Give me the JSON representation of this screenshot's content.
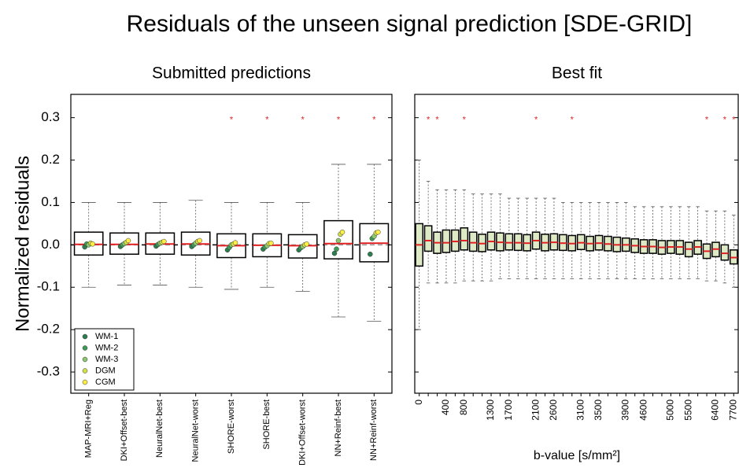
{
  "title": "Residuals of the unseen signal prediction [SDE-GRID]",
  "chart_data": [
    {
      "type": "box",
      "title": "Submitted predictions",
      "ylabel": "Normalized residuals",
      "categories": [
        "MAP-MRI+Reg",
        "DKI+Offset-best",
        "NeuralNet-best",
        "NeuralNet-worst",
        "SHORE-worst",
        "SHORE-best",
        "DKI+Offset-worst",
        "NN+Reinf-best",
        "NN+Reinf-worst"
      ],
      "boxes": {
        "whisker_low": [
          -0.1,
          -0.095,
          -0.095,
          -0.1,
          -0.105,
          -0.1,
          -0.11,
          -0.17,
          -0.18
        ],
        "q1": [
          -0.024,
          -0.022,
          -0.022,
          -0.024,
          -0.03,
          -0.028,
          -0.031,
          -0.033,
          -0.04
        ],
        "median": [
          0.001,
          0.001,
          0.002,
          0.002,
          -0.002,
          -0.001,
          -0.002,
          0.003,
          0.004
        ],
        "q3": [
          0.03,
          0.028,
          0.028,
          0.03,
          0.026,
          0.026,
          0.024,
          0.057,
          0.05
        ],
        "whisker_high": [
          0.1,
          0.1,
          0.1,
          0.105,
          0.1,
          0.1,
          0.1,
          0.19,
          0.19
        ]
      },
      "box_color": "#000000",
      "box_fill": "#ffffff",
      "median_color": "#e02020",
      "series": [
        {
          "name": "WM-1",
          "color": "#2e7d4f",
          "values": [
            -0.005,
            -0.004,
            -0.003,
            -0.004,
            -0.012,
            -0.01,
            -0.012,
            -0.02,
            -0.022
          ]
        },
        {
          "name": "WM-2",
          "color": "#3f9a5a",
          "values": [
            0.002,
            0.0,
            0.001,
            0.0,
            -0.006,
            -0.005,
            -0.007,
            -0.01,
            0.015
          ]
        },
        {
          "name": "WM-3",
          "color": "#8cc870",
          "values": [
            0.0,
            0.003,
            0.004,
            0.004,
            0.0,
            -0.002,
            -0.004,
            0.01,
            0.02
          ]
        },
        {
          "name": "DGM",
          "color": "#d4e04a",
          "values": [
            0.004,
            0.006,
            0.006,
            0.008,
            0.002,
            0.003,
            0.0,
            0.025,
            0.028
          ]
        },
        {
          "name": "CGM",
          "color": "#ffee44",
          "values": [
            0.002,
            0.01,
            0.008,
            0.01,
            0.005,
            0.004,
            0.002,
            0.03,
            0.03
          ]
        }
      ],
      "legend": "lower left",
      "reference_line": 0,
      "flag_text": "*",
      "flag_y": 0.3,
      "flag_color": "#e02020",
      "flagged": [
        false,
        false,
        false,
        false,
        true,
        true,
        true,
        true,
        true
      ],
      "ylim": [
        -0.35,
        0.355
      ],
      "yticks": [
        -0.3,
        -0.2,
        -0.1,
        {
          "value": 0,
          "label": "0.0"
        },
        0.1,
        0.2,
        0.3
      ],
      "show_ytick_labels": true
    },
    {
      "type": "box",
      "title": "Best fit",
      "xlabel": "b-value [s/mm²]",
      "categories": [
        "0",
        null,
        null,
        "400",
        null,
        "800",
        null,
        null,
        "1300",
        null,
        "1700",
        null,
        null,
        "2100",
        null,
        "2600",
        null,
        null,
        "3100",
        null,
        "3500",
        null,
        null,
        "3900",
        null,
        "4600",
        null,
        null,
        "5000",
        null,
        "5500",
        null,
        null,
        "6400",
        null,
        "7700"
      ],
      "boxes": {
        "whisker_low": [
          -0.2,
          -0.09,
          -0.09,
          -0.09,
          -0.09,
          -0.085,
          -0.085,
          -0.085,
          -0.085,
          -0.08,
          -0.08,
          -0.08,
          -0.08,
          -0.08,
          -0.08,
          -0.08,
          -0.08,
          -0.08,
          -0.08,
          -0.08,
          -0.08,
          -0.08,
          -0.08,
          -0.08,
          -0.08,
          -0.08,
          -0.08,
          -0.08,
          -0.08,
          -0.08,
          -0.08,
          -0.08,
          -0.085,
          -0.085,
          -0.09,
          -0.1
        ],
        "q1": [
          -0.05,
          -0.015,
          -0.02,
          -0.018,
          -0.015,
          -0.012,
          -0.015,
          -0.016,
          -0.012,
          -0.014,
          -0.012,
          -0.013,
          -0.014,
          -0.01,
          -0.014,
          -0.012,
          -0.013,
          -0.014,
          -0.011,
          -0.014,
          -0.012,
          -0.014,
          -0.016,
          -0.015,
          -0.018,
          -0.02,
          -0.02,
          -0.022,
          -0.02,
          -0.022,
          -0.028,
          -0.022,
          -0.032,
          -0.028,
          -0.036,
          -0.045
        ],
        "median": [
          0.0,
          0.01,
          0.005,
          0.005,
          0.008,
          0.01,
          0.005,
          0.003,
          0.008,
          0.006,
          0.005,
          0.005,
          0.004,
          0.01,
          0.005,
          0.006,
          0.004,
          0.003,
          0.005,
          0.003,
          0.004,
          0.002,
          0.0,
          0.0,
          -0.002,
          -0.004,
          -0.004,
          -0.006,
          -0.005,
          -0.005,
          -0.01,
          -0.005,
          -0.015,
          -0.01,
          -0.02,
          -0.03
        ],
        "q3": [
          0.05,
          0.045,
          0.03,
          0.035,
          0.035,
          0.04,
          0.03,
          0.025,
          0.03,
          0.028,
          0.026,
          0.026,
          0.024,
          0.03,
          0.025,
          0.026,
          0.024,
          0.022,
          0.024,
          0.02,
          0.022,
          0.02,
          0.018,
          0.016,
          0.014,
          0.012,
          0.012,
          0.01,
          0.01,
          0.01,
          0.006,
          0.01,
          0.002,
          0.006,
          0.0,
          -0.012
        ],
        "whisker_high": [
          0.2,
          0.15,
          0.13,
          0.13,
          0.13,
          0.13,
          0.12,
          0.12,
          0.12,
          0.12,
          0.11,
          0.11,
          0.11,
          0.11,
          0.11,
          0.11,
          0.1,
          0.1,
          0.1,
          0.1,
          0.1,
          0.1,
          0.1,
          0.1,
          0.09,
          0.09,
          0.09,
          0.09,
          0.09,
          0.09,
          0.09,
          0.09,
          0.08,
          0.08,
          0.08,
          0.07
        ]
      },
      "box_color": "#000000",
      "box_fill": "#c8dca0",
      "median_color": "#e02020",
      "flag_text": "*",
      "flag_y": 0.3,
      "flag_color": "#e02020",
      "flagged": [
        false,
        true,
        true,
        false,
        false,
        true,
        false,
        false,
        false,
        false,
        false,
        false,
        false,
        true,
        false,
        false,
        false,
        true,
        false,
        false,
        false,
        false,
        false,
        false,
        false,
        false,
        false,
        false,
        false,
        false,
        false,
        false,
        true,
        false,
        true,
        true
      ],
      "ylim": [
        -0.35,
        0.355
      ],
      "yticks": [
        -0.3,
        -0.2,
        -0.1,
        0,
        0.1,
        0.2,
        0.3
      ],
      "show_ytick_labels": false
    }
  ]
}
